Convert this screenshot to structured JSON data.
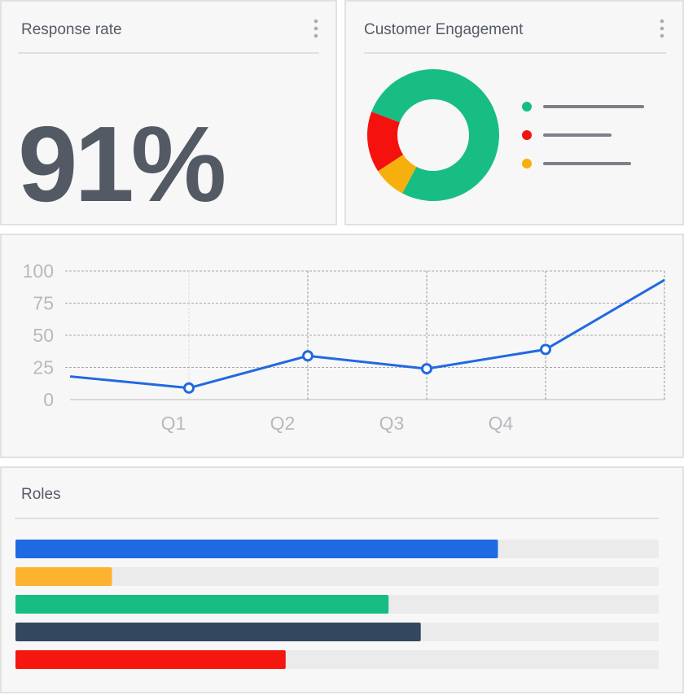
{
  "response_card": {
    "title": "Response rate",
    "value": "91%"
  },
  "chart_data": [
    {
      "type": "pie",
      "title": "Customer Engagement",
      "categories": [
        null,
        null,
        null
      ],
      "values": [
        77,
        15,
        8
      ],
      "colors": [
        "#18bd84",
        "#f5120e",
        "#f6b00d"
      ],
      "legend": "right"
    },
    {
      "type": "line",
      "categories": [
        null,
        "Q1",
        "Q2",
        "Q3",
        "Q4",
        null
      ],
      "series": [
        {
          "name": null,
          "color": "#2169e0",
          "values": [
            18,
            9,
            34,
            24,
            39,
            93
          ]
        }
      ],
      "ylim": [
        0,
        100
      ],
      "yticks": [
        0,
        25,
        50,
        75,
        100
      ],
      "grid": true
    },
    {
      "type": "barh",
      "title": "Roles",
      "categories": [
        null,
        null,
        null,
        null,
        null
      ],
      "values": [
        75,
        15,
        58,
        63,
        42
      ],
      "colors": [
        "#1f6ae3",
        "#fdb22f",
        "#18bd84",
        "#33475f",
        "#f5160f"
      ],
      "xlim": [
        0,
        100
      ]
    }
  ]
}
